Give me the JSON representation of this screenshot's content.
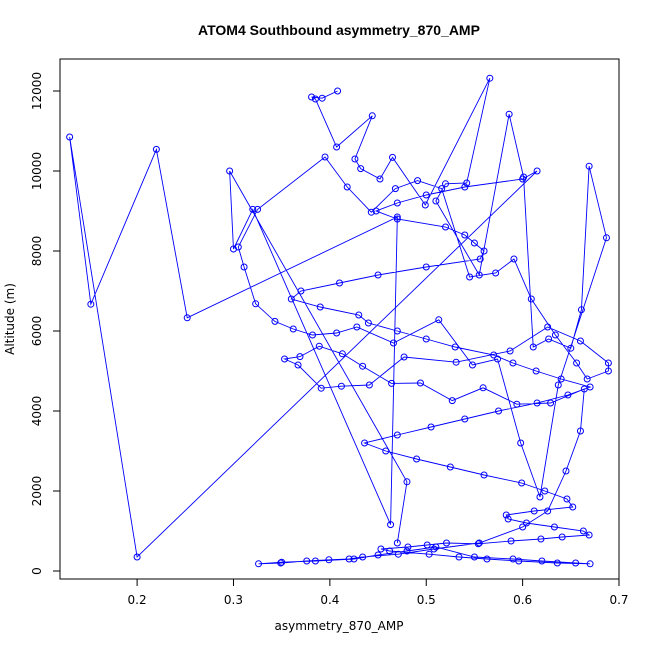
{
  "chart_data": {
    "type": "line",
    "title": "ATOM4 Southbound asymmetry_870_AMP",
    "xlabel": "asymmetry_870_AMP",
    "ylabel": "Altitude (m)",
    "xlim": [
      0.12,
      0.7
    ],
    "ylim": [
      -200,
      12800
    ],
    "xticks": [
      0.2,
      0.3,
      0.4,
      0.5,
      0.6,
      0.7
    ],
    "yticks": [
      0,
      2000,
      4000,
      6000,
      8000,
      10000,
      12000
    ],
    "grid": false,
    "legend": "none",
    "series_color": "#0000ff",
    "marker": "open-circle",
    "series": [
      {
        "x": [
          0.408,
          0.392,
          0.381,
          0.385,
          0.407,
          0.444,
          0.426,
          0.432,
          0.452,
          0.465,
          0.499,
          0.566,
          0.542,
          0.52,
          0.51,
          0.555,
          0.586,
          0.601,
          0.611,
          0.627,
          0.65,
          0.661,
          0.669,
          0.687,
          0.637,
          0.618,
          0.598,
          0.574,
          0.548,
          0.513,
          0.466,
          0.428,
          0.407,
          0.382,
          0.362,
          0.343,
          0.323,
          0.311,
          0.305,
          0.325,
          0.395,
          0.418,
          0.443,
          0.468,
          0.491,
          0.516,
          0.545,
          0.572,
          0.591,
          0.609,
          0.634,
          0.656,
          0.667,
          0.689,
          0.689,
          0.66,
          0.626,
          0.587,
          0.531,
          0.477,
          0.441,
          0.412,
          0.391,
          0.367,
          0.353,
          0.369,
          0.389,
          0.413,
          0.434,
          0.464,
          0.494,
          0.527,
          0.559,
          0.594,
          0.629,
          0.664,
          0.66,
          0.645,
          0.626,
          0.6,
          0.555,
          0.508,
          0.471,
          0.434,
          0.42,
          0.399,
          0.376,
          0.349,
          0.326,
          0.35,
          0.385,
          0.425,
          0.45,
          0.48,
          0.51,
          0.55,
          0.59,
          0.62,
          0.655,
          0.67,
          0.636,
          0.596,
          0.563,
          0.534,
          0.503,
          0.462,
          0.453,
          0.481,
          0.501,
          0.521,
          0.554,
          0.588,
          0.619,
          0.641,
          0.669,
          0.663,
          0.633,
          0.604,
          0.585,
          0.583,
          0.612,
          0.652,
          0.646,
          0.623,
          0.599,
          0.56,
          0.525,
          0.49,
          0.458,
          0.436,
          0.47,
          0.505,
          0.54,
          0.575,
          0.615,
          0.647,
          0.67,
          0.64,
          0.614,
          0.59,
          0.57,
          0.53,
          0.5,
          0.47,
          0.44,
          0.43,
          0.39,
          0.36,
          0.37,
          0.41,
          0.45,
          0.5,
          0.556,
          0.56,
          0.55,
          0.54,
          0.52,
          0.47,
          0.448,
          0.47,
          0.5,
          0.54,
          0.6,
          0.615,
          0.2,
          0.13,
          0.152,
          0.22,
          0.252,
          0.47,
          0.463,
          0.32,
          0.3,
          0.296,
          0.48,
          0.47
        ],
        "y": [
          12000,
          11820,
          11850,
          11800,
          10600,
          11380,
          10300,
          10060,
          9800,
          10340,
          9150,
          12320,
          9700,
          9680,
          9250,
          7400,
          11420,
          9850,
          5600,
          5800,
          5570,
          6530,
          10120,
          8330,
          4650,
          1850,
          3200,
          5300,
          5150,
          6280,
          5700,
          6100,
          5950,
          5900,
          6050,
          6240,
          6680,
          7600,
          8100,
          9040,
          10350,
          9600,
          8970,
          9560,
          9760,
          9560,
          7350,
          7450,
          7800,
          6800,
          5900,
          5200,
          4800,
          5000,
          5200,
          5750,
          6100,
          5500,
          5220,
          5350,
          4650,
          4620,
          4570,
          5150,
          5300,
          5360,
          5620,
          5430,
          5120,
          4690,
          4700,
          4260,
          4580,
          4170,
          4200,
          4550,
          3500,
          2500,
          1500,
          1100,
          700,
          550,
          420,
          350,
          300,
          280,
          250,
          200,
          180,
          220,
          250,
          300,
          400,
          500,
          600,
          350,
          300,
          250,
          200,
          180,
          200,
          250,
          300,
          350,
          420,
          500,
          550,
          600,
          650,
          700,
          680,
          750,
          800,
          850,
          900,
          1000,
          1100,
          1200,
          1300,
          1400,
          1500,
          1600,
          1800,
          2000,
          2200,
          2400,
          2600,
          2800,
          3000,
          3200,
          3400,
          3600,
          3800,
          4000,
          4200,
          4400,
          4600,
          4800,
          5000,
          5200,
          5400,
          5600,
          5800,
          6000,
          6200,
          6400,
          6600,
          6800,
          7000,
          7200,
          7400,
          7600,
          7800,
          8000,
          8200,
          8400,
          8600,
          8800,
          9000,
          9200,
          9400,
          9600,
          9800,
          10000,
          350,
          10850,
          6670,
          10540,
          6330,
          8850,
          1160,
          9040,
          8050,
          10000,
          2230,
          700
        ]
      }
    ]
  }
}
